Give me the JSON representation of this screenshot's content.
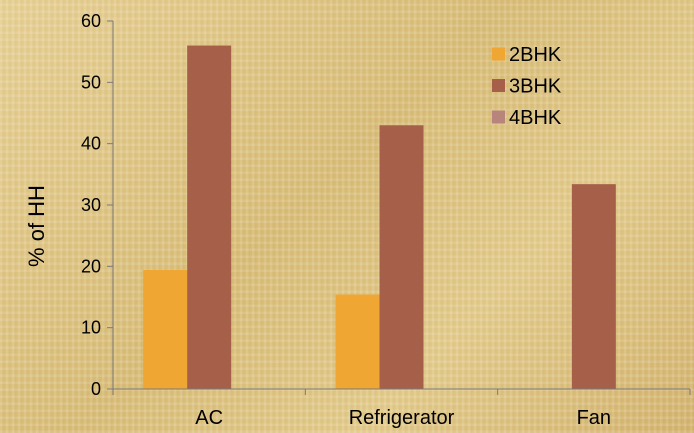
{
  "chart_data": {
    "type": "bar",
    "title": "",
    "xlabel": "",
    "ylabel": "% of HH",
    "categories": [
      "AC",
      "Refrigerator",
      "Fan"
    ],
    "ylim": [
      0,
      60
    ],
    "yticks": [
      "0",
      "10",
      "20",
      "30",
      "40",
      "50",
      "60"
    ],
    "grid": false,
    "legend_position": "right",
    "series": [
      {
        "name": "2BHK",
        "values": [
          19.4,
          15.4,
          0
        ],
        "color": "#f0a632"
      },
      {
        "name": "3BHK",
        "values": [
          56,
          43,
          33.4
        ],
        "color": "#a6604a"
      },
      {
        "name": "4BHK",
        "values": [
          0,
          0,
          0
        ],
        "color": "#b8857d"
      }
    ]
  }
}
